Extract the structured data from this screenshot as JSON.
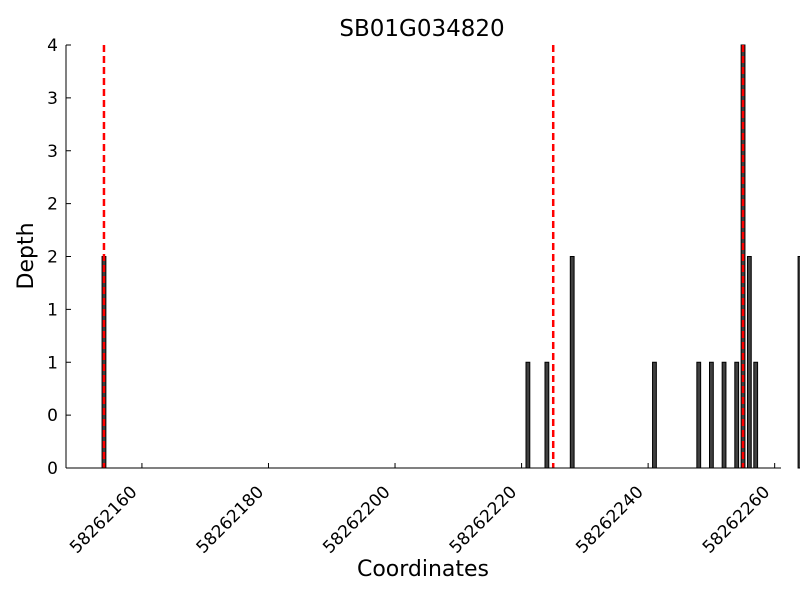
{
  "chart_data": {
    "type": "bar",
    "title": "SB01G034820",
    "xlabel": "Coordinates",
    "ylabel": "Depth",
    "xlim": [
      58262148,
      58262261
    ],
    "ylim": [
      0,
      4
    ],
    "x_ticks": [
      58262160,
      58262180,
      58262200,
      58262220,
      58262240,
      58262260
    ],
    "x_tick_labels": [
      "58262160",
      "58262180",
      "58262200",
      "58262220",
      "58262240",
      "58262260"
    ],
    "y_ticks": [
      0,
      0.5,
      1,
      1.5,
      2,
      2.5,
      3,
      3.5,
      4
    ],
    "y_tick_labels": [
      "0",
      "0",
      "1",
      "1",
      "2",
      "2",
      "3",
      "3",
      "4"
    ],
    "bar_color": "#404040",
    "bar_width": 1,
    "x": [
      58262154,
      58262221,
      58262224,
      58262228,
      58262241,
      58262248,
      58262250,
      58262252,
      58262254,
      58262255,
      58262256,
      58262257,
      58262264
    ],
    "values": [
      2,
      1,
      1,
      2,
      1,
      1,
      1,
      1,
      1,
      4,
      2,
      1,
      2
    ],
    "vlines": {
      "color": "#ff0000",
      "style": "dashed",
      "x": [
        58262154,
        58262225,
        58262255
      ]
    }
  }
}
